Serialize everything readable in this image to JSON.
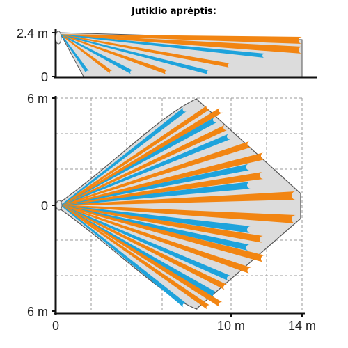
{
  "title": "Jutiklio aprėptis:",
  "side_view": {
    "height_label_top": "2.4 m",
    "height_label_bottom": "0"
  },
  "top_view": {
    "y_label_top": "6 m",
    "y_label_mid": "0",
    "y_label_bottom": "6 m",
    "x_label_origin": "0",
    "x_label_mid": "10 m",
    "x_label_end": "14 m"
  },
  "colors": {
    "orange_beam": "#f28512",
    "blue_beam": "#1ea3dc",
    "coverage_fill": "#dcdcdc",
    "coverage_stroke": "#555555"
  },
  "icons": [
    "sensor-icon-side",
    "sensor-icon-top"
  ]
}
